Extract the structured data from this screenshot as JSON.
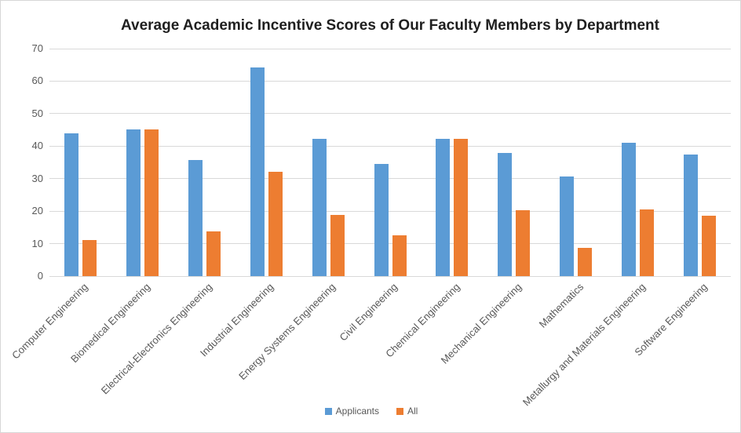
{
  "chart_data": {
    "type": "bar",
    "title": "Average Academic Incentive Scores of Our Faculty Members by Department",
    "categories": [
      "Computer Engineering",
      "Biomedical Engineering",
      "Electrical-Electronics Engineering",
      "Industrial Engineering",
      "Energy Systems Engineering",
      "Civil Engineering",
      "Chemical Engineering",
      "Mechanical Engineering",
      "Mathematics",
      "Metallurgy and Materials Engineering",
      "Software Engineering"
    ],
    "series": [
      {
        "name": "Applicants",
        "color": "#5B9BD5",
        "values": [
          44,
          45.1,
          35.8,
          64.3,
          42.3,
          34.6,
          42.2,
          38,
          30.6,
          41.1,
          37.4
        ]
      },
      {
        "name": "All",
        "color": "#ED7D31",
        "values": [
          11,
          45.1,
          13.7,
          32.2,
          18.8,
          12.5,
          42.2,
          20.3,
          8.6,
          20.6,
          18.6
        ]
      }
    ],
    "xlabel": "",
    "ylabel": "",
    "ylim": [
      0,
      70
    ],
    "ytick_step": 10,
    "grid": true,
    "legend_position": "bottom"
  },
  "colors": {
    "background": "#FFFFFF",
    "border": "#D7D7D7",
    "gridline": "#D9D9D9",
    "axis_text": "#595959",
    "title_text": "#1F1F1F"
  }
}
